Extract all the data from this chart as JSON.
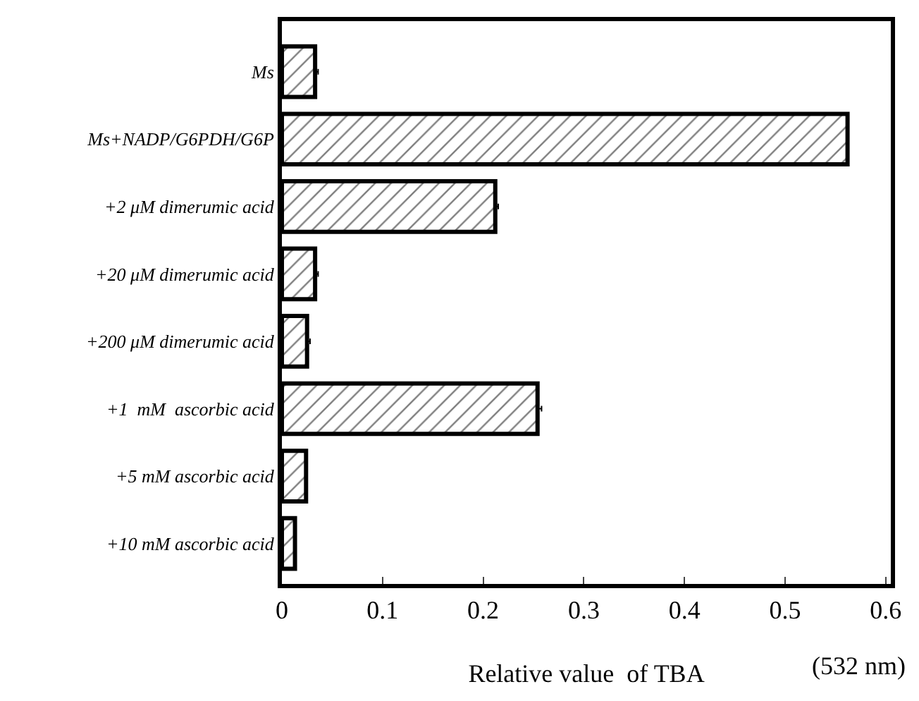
{
  "chart_data": {
    "type": "bar",
    "orientation": "horizontal",
    "xlabel": "Relative value  of TBA",
    "categories": [
      "Ms",
      "Ms+NADP/G6PDH/G6P",
      "+2 μM dimerumic acid",
      "+20 μM dimerumic acid",
      "+200 μM dimerumic acid",
      "+1  mM  ascorbic acid",
      "+5 mM ascorbic acid",
      "+10 mM ascorbic acid"
    ],
    "values": [
      0.033,
      0.562,
      0.212,
      0.033,
      0.025,
      0.254,
      0.024,
      0.013
    ],
    "errors": [
      0.003,
      null,
      0.003,
      0.003,
      0.003,
      0.004,
      null,
      null
    ],
    "color": "#000000",
    "xlim": [
      0,
      0.605
    ],
    "xticks": [
      0,
      0.1,
      0.2,
      0.3,
      0.4,
      0.5,
      0.6
    ],
    "annotations": [
      "(532 nm)"
    ],
    "legend": false
  }
}
